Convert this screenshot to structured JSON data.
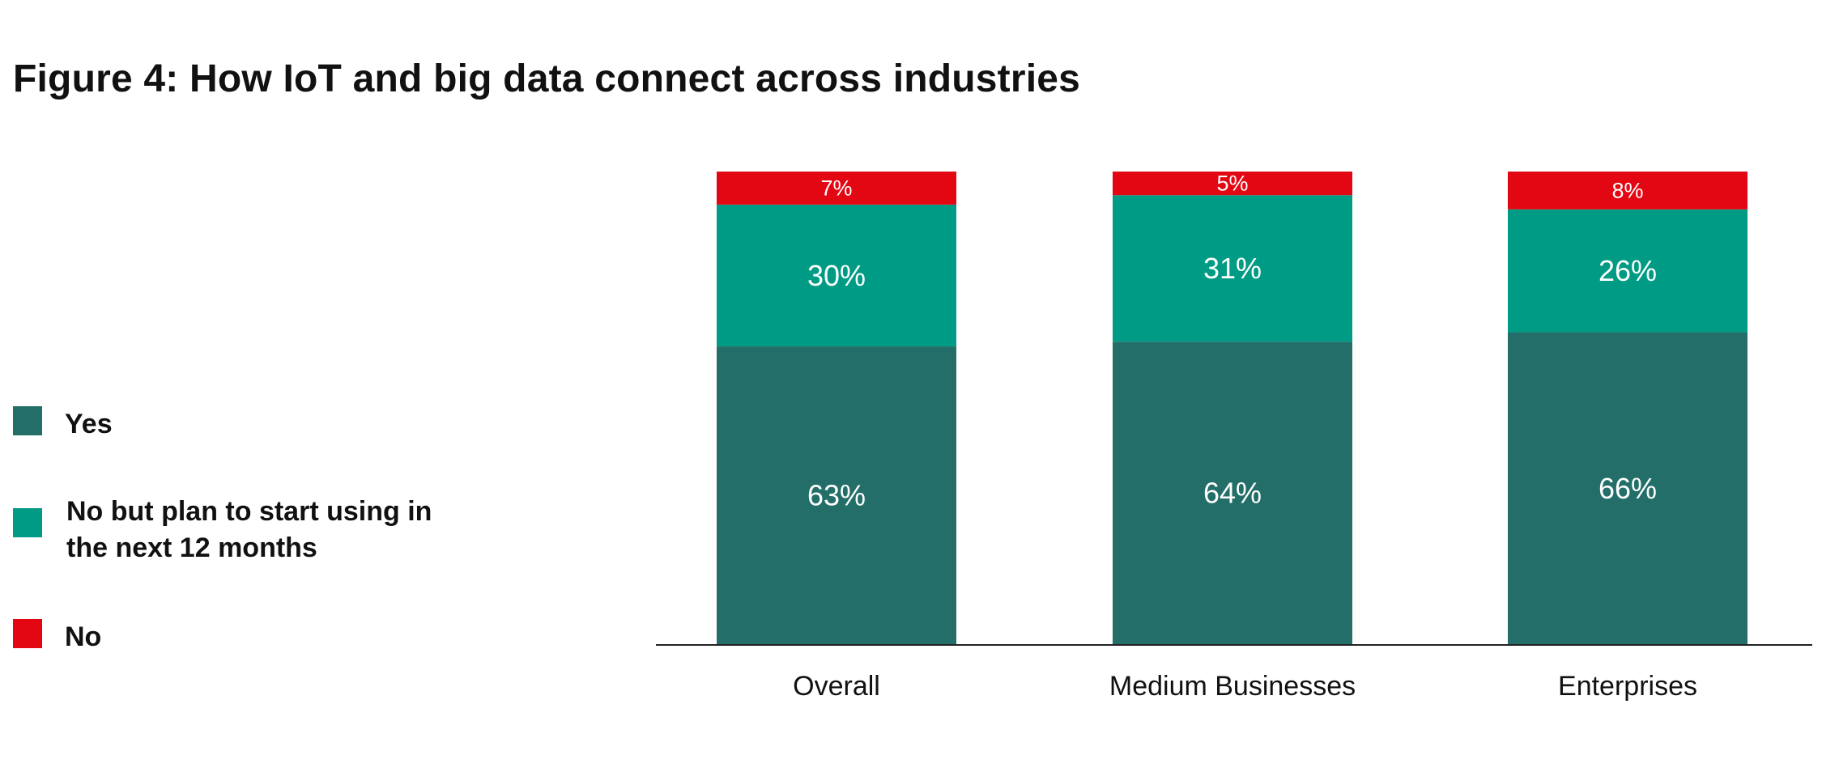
{
  "title": "Figure 4: How IoT and big data connect across industries",
  "colors": {
    "yes": "#236e69",
    "plan": "#009b84",
    "no": "#e30613",
    "axis": "#222222"
  },
  "legend": [
    {
      "key": "yes",
      "label": "Yes"
    },
    {
      "key": "plan",
      "label": "No but plan to start using in the next 12 months"
    },
    {
      "key": "no",
      "label": "No"
    }
  ],
  "chart_data": {
    "type": "bar",
    "stacked": true,
    "categories": [
      "Overall",
      "Medium Businesses",
      "Enterprises"
    ],
    "series": [
      {
        "name": "Yes",
        "key": "yes",
        "values": [
          63,
          64,
          66
        ],
        "labels": [
          "63%",
          "64%",
          "66%"
        ]
      },
      {
        "name": "No but plan to start using in the next 12 months",
        "key": "plan",
        "values": [
          30,
          31,
          26
        ],
        "labels": [
          "30%",
          "31%",
          "26%"
        ]
      },
      {
        "name": "No",
        "key": "no",
        "values": [
          7,
          5,
          8
        ],
        "labels": [
          "7%",
          "5%",
          "8%"
        ]
      }
    ],
    "ylim": [
      0,
      100
    ],
    "grid": false,
    "legend_position": "left"
  }
}
